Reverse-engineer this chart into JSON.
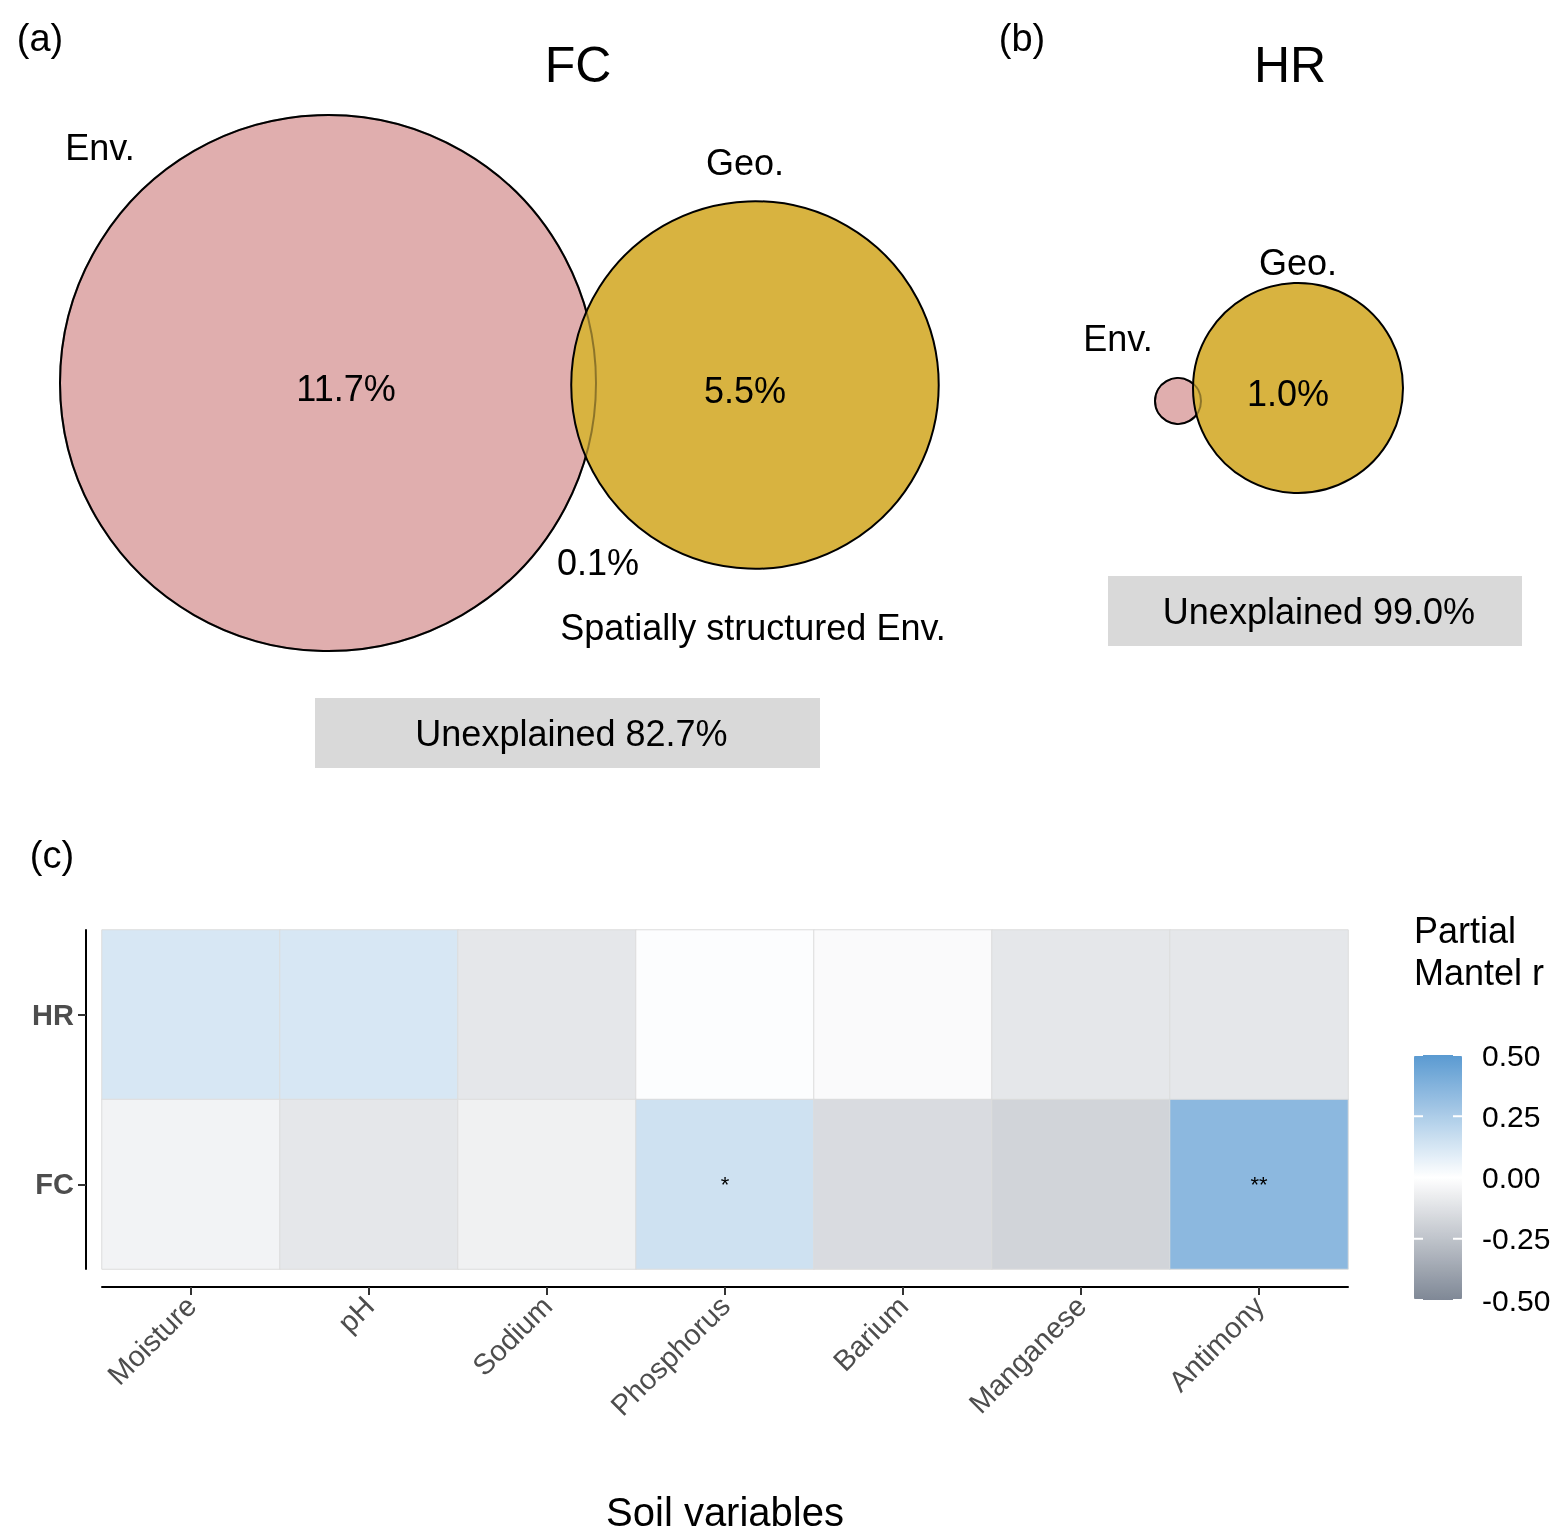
{
  "chart_data": [
    {
      "type": "other",
      "title": "FC",
      "annotations": [
        "(a)"
      ],
      "categories": [
        "Env.",
        "Geo.",
        "Spatially structured Env.",
        "Unexplained"
      ],
      "values": [
        11.7,
        5.5,
        0.1,
        82.7
      ],
      "value_labels": [
        "11.7%",
        "5.5%",
        "0.1%",
        "82.7%"
      ],
      "colors": [
        "#e0aeae",
        "#d8b340",
        null,
        "#d9d9d9"
      ]
    },
    {
      "type": "other",
      "title": "HR",
      "annotations": [
        "(b)"
      ],
      "categories": [
        "Env.",
        "Geo.",
        "Unexplained"
      ],
      "values": [
        null,
        1.0,
        99.0
      ],
      "value_labels": [
        null,
        "1.0%",
        "99.0%"
      ],
      "colors": [
        "#e0aeae",
        "#d8b340",
        "#d9d9d9"
      ]
    },
    {
      "type": "heatmap",
      "title": "(c)",
      "xlabel": "Soil variables",
      "clabel": "Partial Mantel r",
      "categories": [
        "Moisture",
        "pH",
        "Sodium",
        "Phosphorus",
        "Barium",
        "Manganese",
        "Antimony"
      ],
      "y_categories": [
        "HR",
        "FC"
      ],
      "cells": [
        [
          0.12,
          0.12,
          -0.1,
          0.01,
          -0.02,
          -0.1,
          -0.1
        ],
        [
          -0.05,
          -0.1,
          -0.06,
          0.15,
          -0.15,
          -0.18,
          0.35
        ]
      ],
      "cell_labels": [
        [
          null,
          null,
          null,
          null,
          null,
          null,
          null
        ],
        [
          null,
          null,
          null,
          "*",
          null,
          null,
          "**"
        ]
      ],
      "clim": [
        -0.5,
        0.5
      ],
      "cticks": [
        {
          "value": 0.5,
          "label": "0.50"
        },
        {
          "value": 0.25,
          "label": "0.25"
        },
        {
          "value": 0,
          "label": "0.00"
        },
        {
          "value": -0.25,
          "label": "-0.25"
        },
        {
          "value": -0.5,
          "label": "-0.50"
        }
      ]
    }
  ]
}
